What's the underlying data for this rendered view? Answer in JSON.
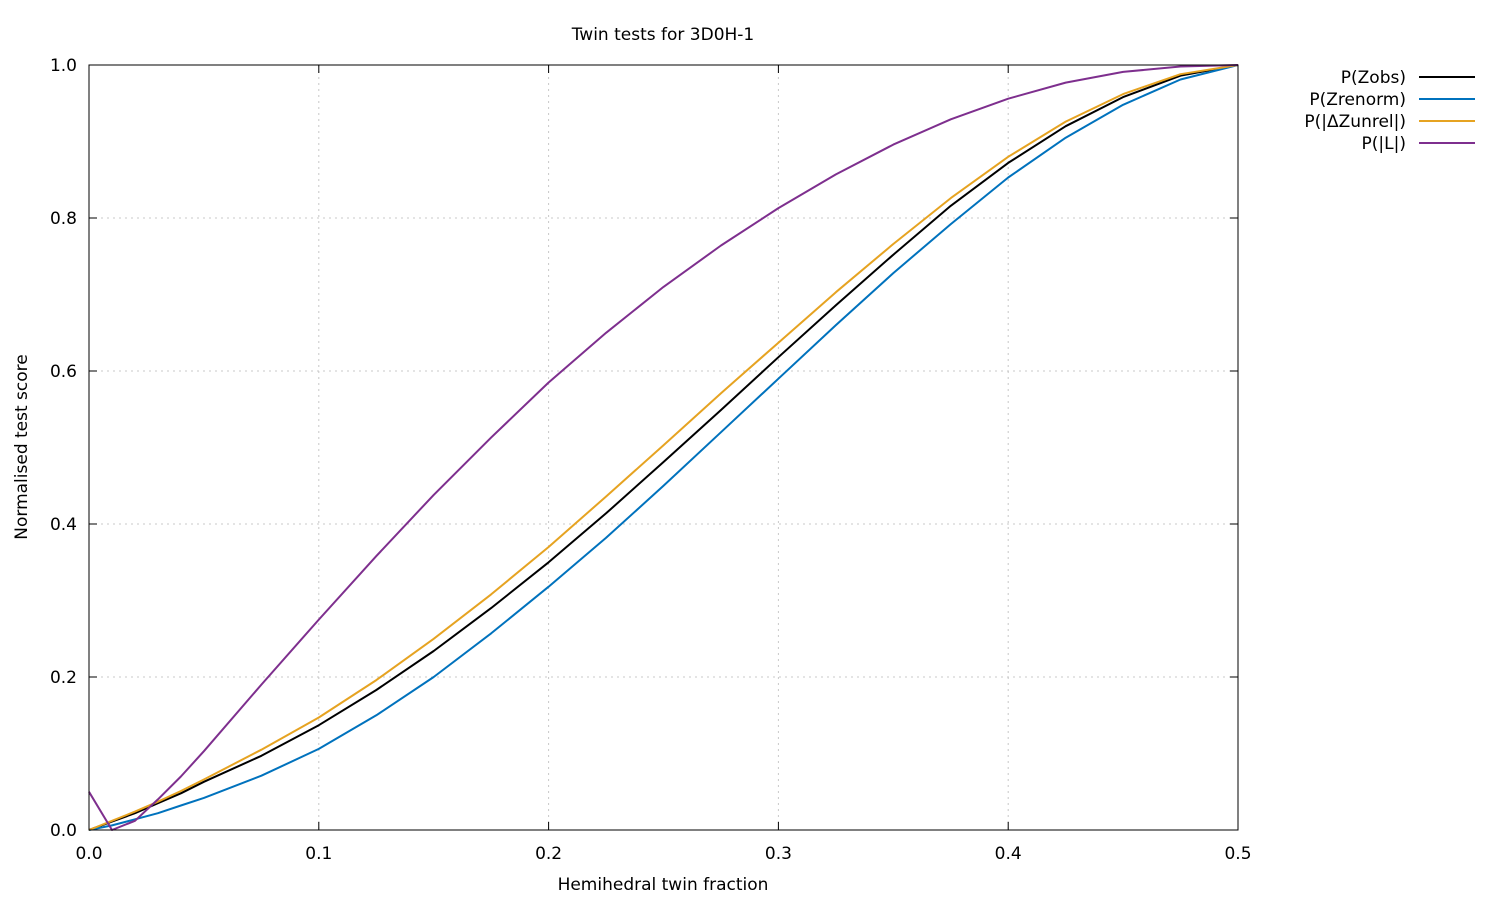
{
  "chart_data": {
    "type": "line",
    "title": "Twin tests for 3D0H-1",
    "xlabel": "Hemihedral twin fraction",
    "ylabel": "Normalised test score",
    "xlim": [
      0.0,
      0.5
    ],
    "ylim": [
      0.0,
      1.0
    ],
    "x_ticks": [
      "0.0",
      "0.1",
      "0.2",
      "0.3",
      "0.4",
      "0.5"
    ],
    "y_ticks": [
      "0.0",
      "0.2",
      "0.4",
      "0.6",
      "0.8",
      "1.0"
    ],
    "grid": true,
    "legend_position": "top-right, outside plot",
    "x": [
      0.0,
      0.01,
      0.02,
      0.03,
      0.04,
      0.05,
      0.075,
      0.1,
      0.125,
      0.15,
      0.175,
      0.2,
      0.225,
      0.25,
      0.275,
      0.3,
      0.325,
      0.35,
      0.375,
      0.4,
      0.425,
      0.45,
      0.475,
      0.5
    ],
    "series": [
      {
        "name": "P(Zobs)",
        "color": "#000000",
        "values": [
          0.0,
          0.011,
          0.022,
          0.035,
          0.048,
          0.063,
          0.097,
          0.137,
          0.183,
          0.234,
          0.29,
          0.35,
          0.414,
          0.481,
          0.549,
          0.618,
          0.686,
          0.752,
          0.816,
          0.872,
          0.92,
          0.958,
          0.986,
          1.0
        ]
      },
      {
        "name": "P(Zrenorm)",
        "color": "#0072bd",
        "values": [
          0.0,
          0.006,
          0.014,
          0.022,
          0.032,
          0.042,
          0.071,
          0.106,
          0.15,
          0.2,
          0.257,
          0.318,
          0.382,
          0.45,
          0.52,
          0.59,
          0.66,
          0.728,
          0.792,
          0.853,
          0.905,
          0.948,
          0.981,
          1.0
        ]
      },
      {
        "name": "P(|ΔZunrel|)",
        "color": "#e6a321",
        "values": [
          0.0,
          0.012,
          0.024,
          0.037,
          0.051,
          0.066,
          0.105,
          0.147,
          0.196,
          0.25,
          0.308,
          0.37,
          0.436,
          0.503,
          0.571,
          0.637,
          0.703,
          0.766,
          0.826,
          0.88,
          0.926,
          0.962,
          0.988,
          1.0
        ]
      },
      {
        "name": "P(|L|)",
        "color": "#7e2f8e",
        "values": [
          0.05,
          0.0,
          0.012,
          0.04,
          0.07,
          0.103,
          0.19,
          0.275,
          0.358,
          0.438,
          0.513,
          0.585,
          0.65,
          0.71,
          0.764,
          0.813,
          0.857,
          0.896,
          0.929,
          0.956,
          0.977,
          0.991,
          0.998,
          1.0
        ]
      }
    ]
  }
}
